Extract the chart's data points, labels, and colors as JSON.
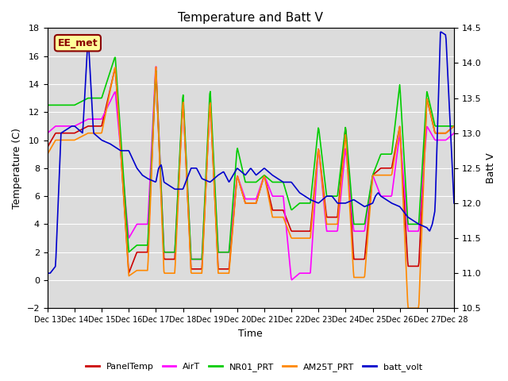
{
  "title": "Temperature and Batt V",
  "xlabel": "Time",
  "ylabel_left": "Temperature (C)",
  "ylabel_right": "Batt V",
  "ylim_left": [
    -2,
    18
  ],
  "ylim_right": [
    10.5,
    14.5
  ],
  "bg_color": "#dcdcdc",
  "annotation_text": "EE_met",
  "annotation_bg": "#ffff99",
  "annotation_border": "#8b0000",
  "series": {
    "PanelTemp": {
      "color": "#cc0000",
      "lw": 1.2
    },
    "AirT": {
      "color": "#ff00ff",
      "lw": 1.2
    },
    "NR01_PRT": {
      "color": "#00cc00",
      "lw": 1.2
    },
    "AM25T_PRT": {
      "color": "#ff8800",
      "lw": 1.2
    },
    "batt_volt": {
      "color": "#0000cc",
      "lw": 1.2
    }
  },
  "xtick_labels": [
    "Dec 13",
    "Dec 14",
    "Dec 15",
    "Dec 16",
    "Dec 17",
    "Dec 18",
    "Dec 19",
    "Dec 20",
    "Dec 21",
    "Dec 22",
    "Dec 23",
    "Dec 24",
    "Dec 25",
    "Dec 26",
    "Dec 27",
    "Dec 28"
  ],
  "yticks_left": [
    -2,
    0,
    2,
    4,
    6,
    8,
    10,
    12,
    14,
    16,
    18
  ],
  "yticks_right": [
    10.5,
    11.0,
    11.5,
    12.0,
    12.5,
    13.0,
    13.5,
    14.0,
    14.5
  ]
}
